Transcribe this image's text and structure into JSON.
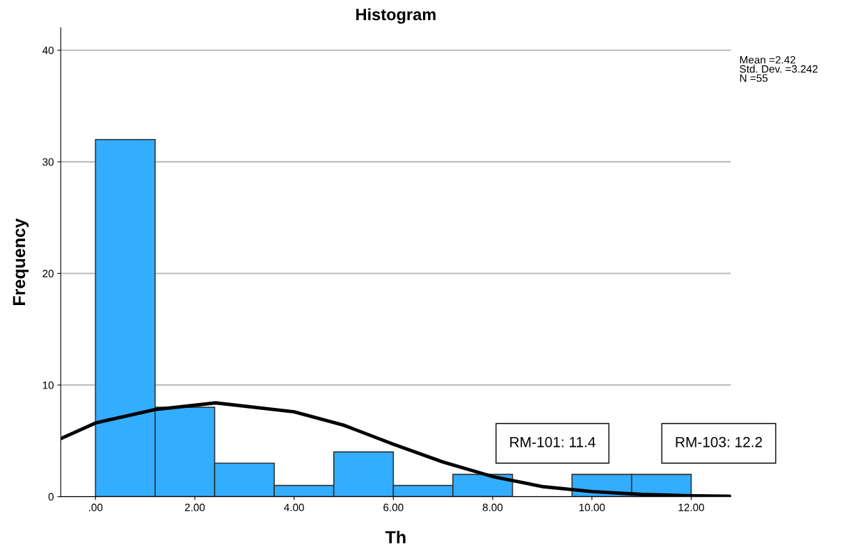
{
  "chart_data": {
    "type": "histogram",
    "title": "Histogram",
    "xlabel": "Th",
    "ylabel": "Frequency",
    "bins": [
      0,
      1.2,
      2.4,
      3.6,
      4.8,
      6.0,
      7.2,
      8.4,
      9.6,
      10.8,
      12.0
    ],
    "series": [
      {
        "color": "#33adff",
        "values": [
          32,
          8,
          3,
          1,
          4,
          1,
          2,
          0,
          2,
          2
        ]
      },
      {
        "type": "line",
        "color": "#000000",
        "x": [
          -0.7,
          0,
          1.2,
          2.42,
          4,
          5,
          6,
          7,
          8,
          9,
          10,
          11,
          12,
          12.8
        ],
        "values": [
          5.2,
          6.6,
          7.8,
          8.4,
          7.6,
          6.4,
          4.7,
          3.1,
          1.8,
          0.9,
          0.45,
          0.2,
          0.08,
          0.03
        ]
      }
    ],
    "xlim": [
      -0.7,
      12.8
    ],
    "ylim": [
      0,
      42
    ],
    "xticks": [
      {
        "value": 0,
        "label": ".00"
      },
      {
        "value": 2,
        "label": "2.00"
      },
      {
        "value": 4,
        "label": "4.00"
      },
      {
        "value": 6,
        "label": "6.00"
      },
      {
        "value": 8,
        "label": "8.00"
      },
      {
        "value": 10,
        "label": "10.00"
      },
      {
        "value": 12,
        "label": "12.00"
      }
    ],
    "yticks": [
      0,
      10,
      20,
      30,
      40
    ],
    "grid": "y",
    "legend": false,
    "annotations": [
      "Mean =2.42\nStd. Dev. =3.242\nN =55",
      "RM-101: 11.4",
      "RM-103: 12.2"
    ]
  }
}
